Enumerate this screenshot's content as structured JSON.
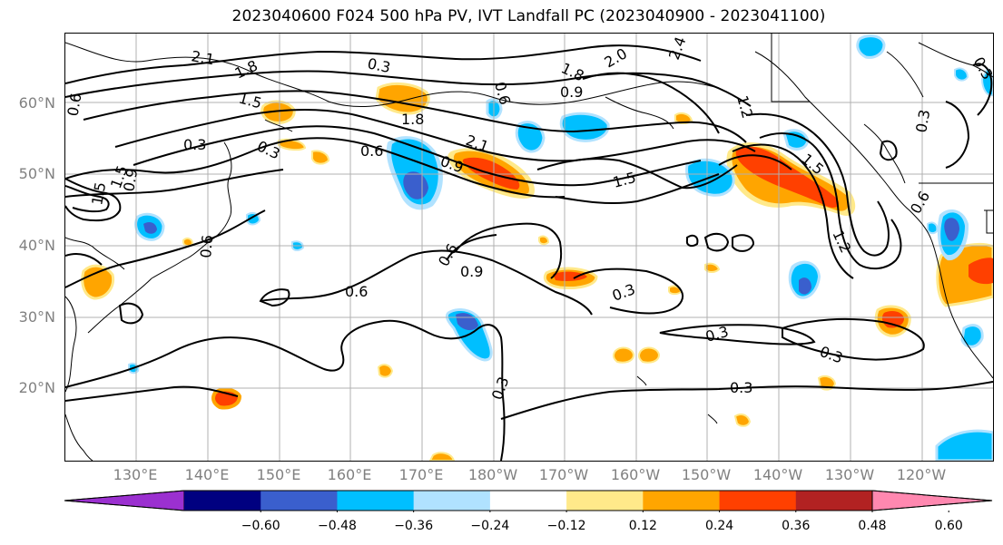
{
  "title": "2023040600 F024 500 hPa PV, IVT Landfall PC (2023040900 - 2023041100)",
  "lat_labels": [
    "60°N",
    "50°N",
    "40°N",
    "30°N",
    "20°N"
  ],
  "lon_labels": [
    "130°E",
    "140°E",
    "150°E",
    "160°E",
    "170°E",
    "180°W",
    "170°W",
    "160°W",
    "150°W",
    "140°W",
    "130°W",
    "120°W"
  ],
  "contour_labels": [
    "2.1",
    "1.8",
    "0.3",
    "1.8",
    "2.0",
    "2.4",
    "0.6",
    "1.5",
    "1.2",
    "0.9",
    "0.6",
    "1.8",
    "2.1",
    "0.6",
    "0.9",
    "1.5",
    "0.3",
    "0.6",
    "0.9",
    "0.6",
    "0.3",
    "0.3",
    "0.3",
    "0.3",
    "0.3",
    "1.2",
    "0.6",
    "1.5",
    "1.5",
    "0.3",
    "0.3",
    "0.6",
    "0.3",
    "1.5",
    "0.9"
  ],
  "colorbar": {
    "colors": [
      "#9b30d0",
      "#000080",
      "#3a5fcd",
      "#00bfff",
      "#b0e2ff",
      "#ffffff",
      "#ffe98a",
      "#ffa500",
      "#ff4000",
      "#b22222",
      "#ff88b0"
    ],
    "extend": "both",
    "tick_labels": [
      "−0.60",
      "−0.48",
      "−0.36",
      "−0.24",
      "−0.12",
      "0.12",
      "0.24",
      "0.36",
      "0.48",
      "0.60"
    ]
  },
  "map_features": [
    "coastlines",
    "country-borders",
    "lat-lon-grid",
    "pv-contours",
    "ivt-pc-shading"
  ]
}
